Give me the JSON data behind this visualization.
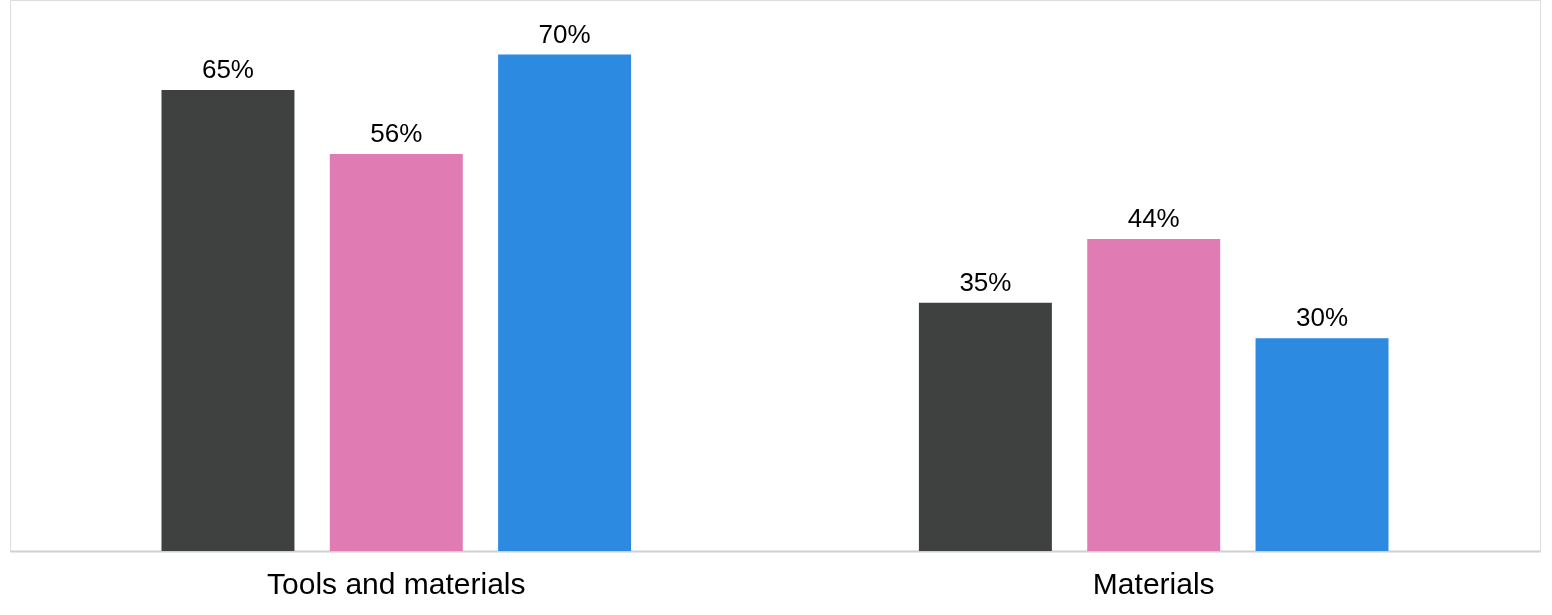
{
  "chart_data": {
    "type": "bar",
    "categories": [
      "Tools and materials",
      "Materials"
    ],
    "series": [
      {
        "color": "#3f4040",
        "values": [
          65,
          35
        ],
        "value_labels": [
          "65%",
          "35%"
        ]
      },
      {
        "color": "#e07bb4",
        "values": [
          56,
          44
        ],
        "value_labels": [
          "56%",
          "44%"
        ]
      },
      {
        "color": "#2c8be0",
        "values": [
          70,
          30
        ],
        "value_labels": [
          "70%",
          "30%"
        ]
      }
    ]
  }
}
